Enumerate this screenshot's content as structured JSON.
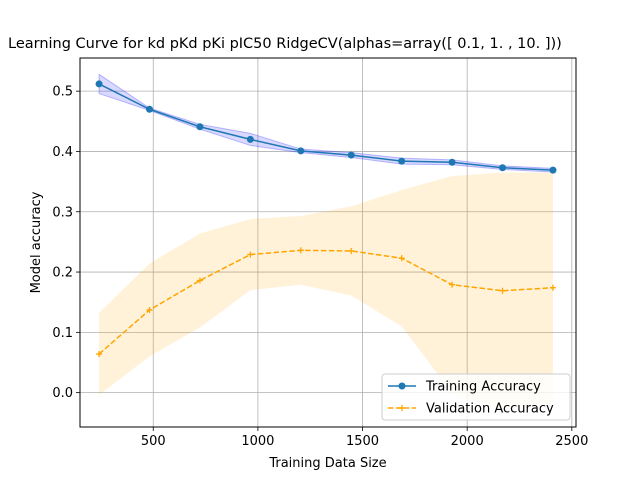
{
  "chart_data": {
    "type": "line",
    "title": "Learning Curve for kd pKd pKi pIC50 RidgeCV(alphas=array([ 0.1,  1. , 10. ]))",
    "xlabel": "Training Data Size",
    "ylabel": "Model accuracy",
    "xlim": [
      150,
      2520
    ],
    "ylim": [
      -0.057,
      0.555
    ],
    "xticks": [
      500,
      1000,
      1500,
      2000,
      2500
    ],
    "yticks": [
      0.0,
      0.1,
      0.2,
      0.3,
      0.4,
      0.5
    ],
    "grid": true,
    "legend_position": "lower-right",
    "x": [
      241,
      482,
      723,
      964,
      1205,
      1446,
      1687,
      1928,
      2169,
      2410
    ],
    "series": [
      {
        "name": "Training Accuracy",
        "color": "#1f77b4",
        "band_color": "#0000ff",
        "line_style": "solid",
        "marker": "circle",
        "values": [
          0.512,
          0.47,
          0.441,
          0.42,
          0.401,
          0.394,
          0.384,
          0.382,
          0.373,
          0.369
        ],
        "band_lower": [
          0.496,
          0.468,
          0.437,
          0.41,
          0.398,
          0.39,
          0.379,
          0.378,
          0.37,
          0.366
        ],
        "band_upper": [
          0.528,
          0.472,
          0.445,
          0.43,
          0.404,
          0.398,
          0.389,
          0.386,
          0.376,
          0.372
        ]
      },
      {
        "name": "Validation Accuracy",
        "color": "#ffa500",
        "band_color": "#ffa500",
        "line_style": "dashed",
        "marker": "plus",
        "values": [
          0.064,
          0.137,
          0.186,
          0.229,
          0.236,
          0.235,
          0.223,
          0.179,
          0.169,
          0.174
        ],
        "band_lower": [
          -0.004,
          0.06,
          0.108,
          0.17,
          0.179,
          0.161,
          0.11,
          -0.001,
          -0.027,
          -0.017
        ],
        "band_upper": [
          0.132,
          0.214,
          0.264,
          0.288,
          0.293,
          0.309,
          0.336,
          0.359,
          0.365,
          0.365
        ]
      }
    ]
  }
}
